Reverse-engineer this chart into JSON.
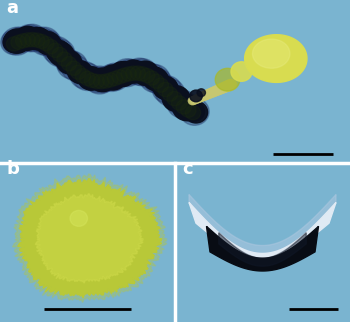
{
  "fig_width": 3.5,
  "fig_height": 3.22,
  "dpi": 100,
  "bg_color": "#7ab4d0",
  "panel_a": {
    "label": "a",
    "label_color": "white",
    "bg_color": "#7ab4d0",
    "body_dark": "#0a0f1e",
    "body_mid": "#111830",
    "body_blue": "#1a2a5e",
    "body_green": "#1a2a10",
    "yellow_color": "#d8dc50",
    "yellow_light": "#e8ec80",
    "connection_color": "#2a3a20",
    "neck_color": "#c8c870"
  },
  "panel_b": {
    "label": "b",
    "label_color": "white",
    "bg_color": "#6aaac8",
    "cap_outer": "#b8c838",
    "cap_inner": "#ccd848",
    "cap_highlight": "#d8e860"
  },
  "panel_c": {
    "label": "c",
    "label_color": "white",
    "bg_color": "#88b8d0",
    "embryo_outer": "#c0d0e0",
    "embryo_white": "#e0eaf4",
    "intestine_color": "#080c14",
    "intestine_mid": "#101828"
  },
  "scale_bar_color": "black",
  "divider_color": "white"
}
